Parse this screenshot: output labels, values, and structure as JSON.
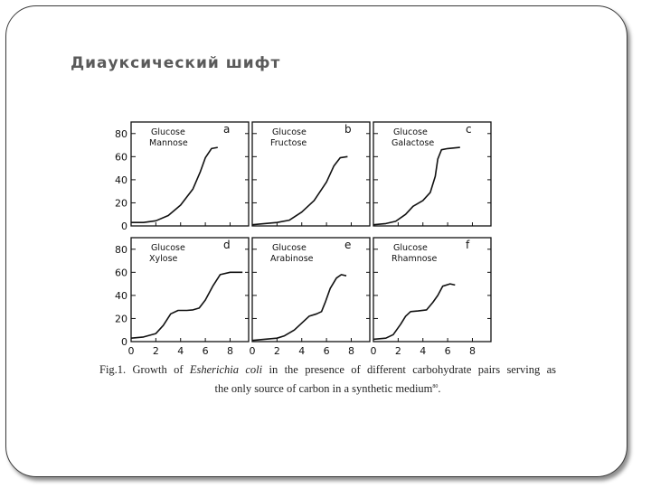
{
  "slide": {
    "title": "Диауксический шифт"
  },
  "caption": {
    "prefix": "Fig.1. Growth of",
    "species": "Esherichia coli",
    "mid": "in the presence of different carbohydrate pairs serving as",
    "line2": "the only source of carbon in a synthetic medium",
    "ref": "80",
    "end": "."
  },
  "chart_data": {
    "type": "line",
    "layout": "2x3 grid of panels",
    "xlabel": "",
    "ylabel": "",
    "xlim": [
      0,
      9.5
    ],
    "ylim": [
      0,
      90
    ],
    "x_ticks": [
      "0",
      "2",
      "4",
      "6",
      "8"
    ],
    "y_ticks": [
      "0",
      "20",
      "40",
      "60",
      "80"
    ],
    "panels": [
      {
        "letter": "a",
        "label": [
          "Glucose",
          "Mannose"
        ],
        "points": [
          [
            0,
            3
          ],
          [
            1,
            3
          ],
          [
            2,
            4.5
          ],
          [
            3,
            9
          ],
          [
            4,
            18
          ],
          [
            5,
            32
          ],
          [
            5.6,
            47
          ],
          [
            6,
            59
          ],
          [
            6.5,
            67
          ],
          [
            7,
            68
          ]
        ]
      },
      {
        "letter": "b",
        "label": [
          "Glucose",
          "Fructose"
        ],
        "points": [
          [
            0,
            1
          ],
          [
            1,
            2
          ],
          [
            2,
            3
          ],
          [
            3,
            5
          ],
          [
            4,
            12
          ],
          [
            5,
            22
          ],
          [
            6,
            38
          ],
          [
            6.6,
            52
          ],
          [
            7.1,
            59
          ],
          [
            7.7,
            60
          ]
        ]
      },
      {
        "letter": "c",
        "label": [
          "Glucose",
          "Galactose"
        ],
        "points": [
          [
            0,
            1
          ],
          [
            1,
            2
          ],
          [
            1.8,
            4
          ],
          [
            2.6,
            10
          ],
          [
            3.2,
            17
          ],
          [
            4,
            22
          ],
          [
            4.6,
            29
          ],
          [
            5,
            43
          ],
          [
            5.2,
            58
          ],
          [
            5.5,
            66
          ],
          [
            6,
            67
          ],
          [
            7,
            68
          ]
        ]
      },
      {
        "letter": "d",
        "label": [
          "Glucose",
          "Xylose"
        ],
        "points": [
          [
            0,
            3
          ],
          [
            1,
            4
          ],
          [
            2,
            7
          ],
          [
            2.6,
            14
          ],
          [
            3.2,
            24
          ],
          [
            3.8,
            27
          ],
          [
            4.5,
            27
          ],
          [
            5,
            27.5
          ],
          [
            5.5,
            29
          ],
          [
            6,
            36
          ],
          [
            6.6,
            48
          ],
          [
            7.2,
            58
          ],
          [
            8,
            60
          ],
          [
            9,
            60
          ]
        ]
      },
      {
        "letter": "e",
        "label": [
          "Glucose",
          "Arabinose"
        ],
        "points": [
          [
            0,
            1
          ],
          [
            1,
            2
          ],
          [
            2,
            3
          ],
          [
            2.6,
            5
          ],
          [
            3.4,
            10
          ],
          [
            4,
            16
          ],
          [
            4.6,
            22
          ],
          [
            5.2,
            24
          ],
          [
            5.6,
            26
          ],
          [
            5.9,
            34
          ],
          [
            6.3,
            46
          ],
          [
            6.8,
            55
          ],
          [
            7.2,
            58
          ],
          [
            7.6,
            57
          ]
        ]
      },
      {
        "letter": "f",
        "label": [
          "Glucose",
          "Rhamnose"
        ],
        "points": [
          [
            0,
            2
          ],
          [
            1,
            3
          ],
          [
            1.6,
            6
          ],
          [
            2.2,
            15
          ],
          [
            2.6,
            22
          ],
          [
            3,
            26
          ],
          [
            3.6,
            26.5
          ],
          [
            4.3,
            27.5
          ],
          [
            4.8,
            34
          ],
          [
            5.2,
            40
          ],
          [
            5.6,
            48
          ],
          [
            6.2,
            50
          ],
          [
            6.6,
            49
          ]
        ]
      }
    ]
  }
}
